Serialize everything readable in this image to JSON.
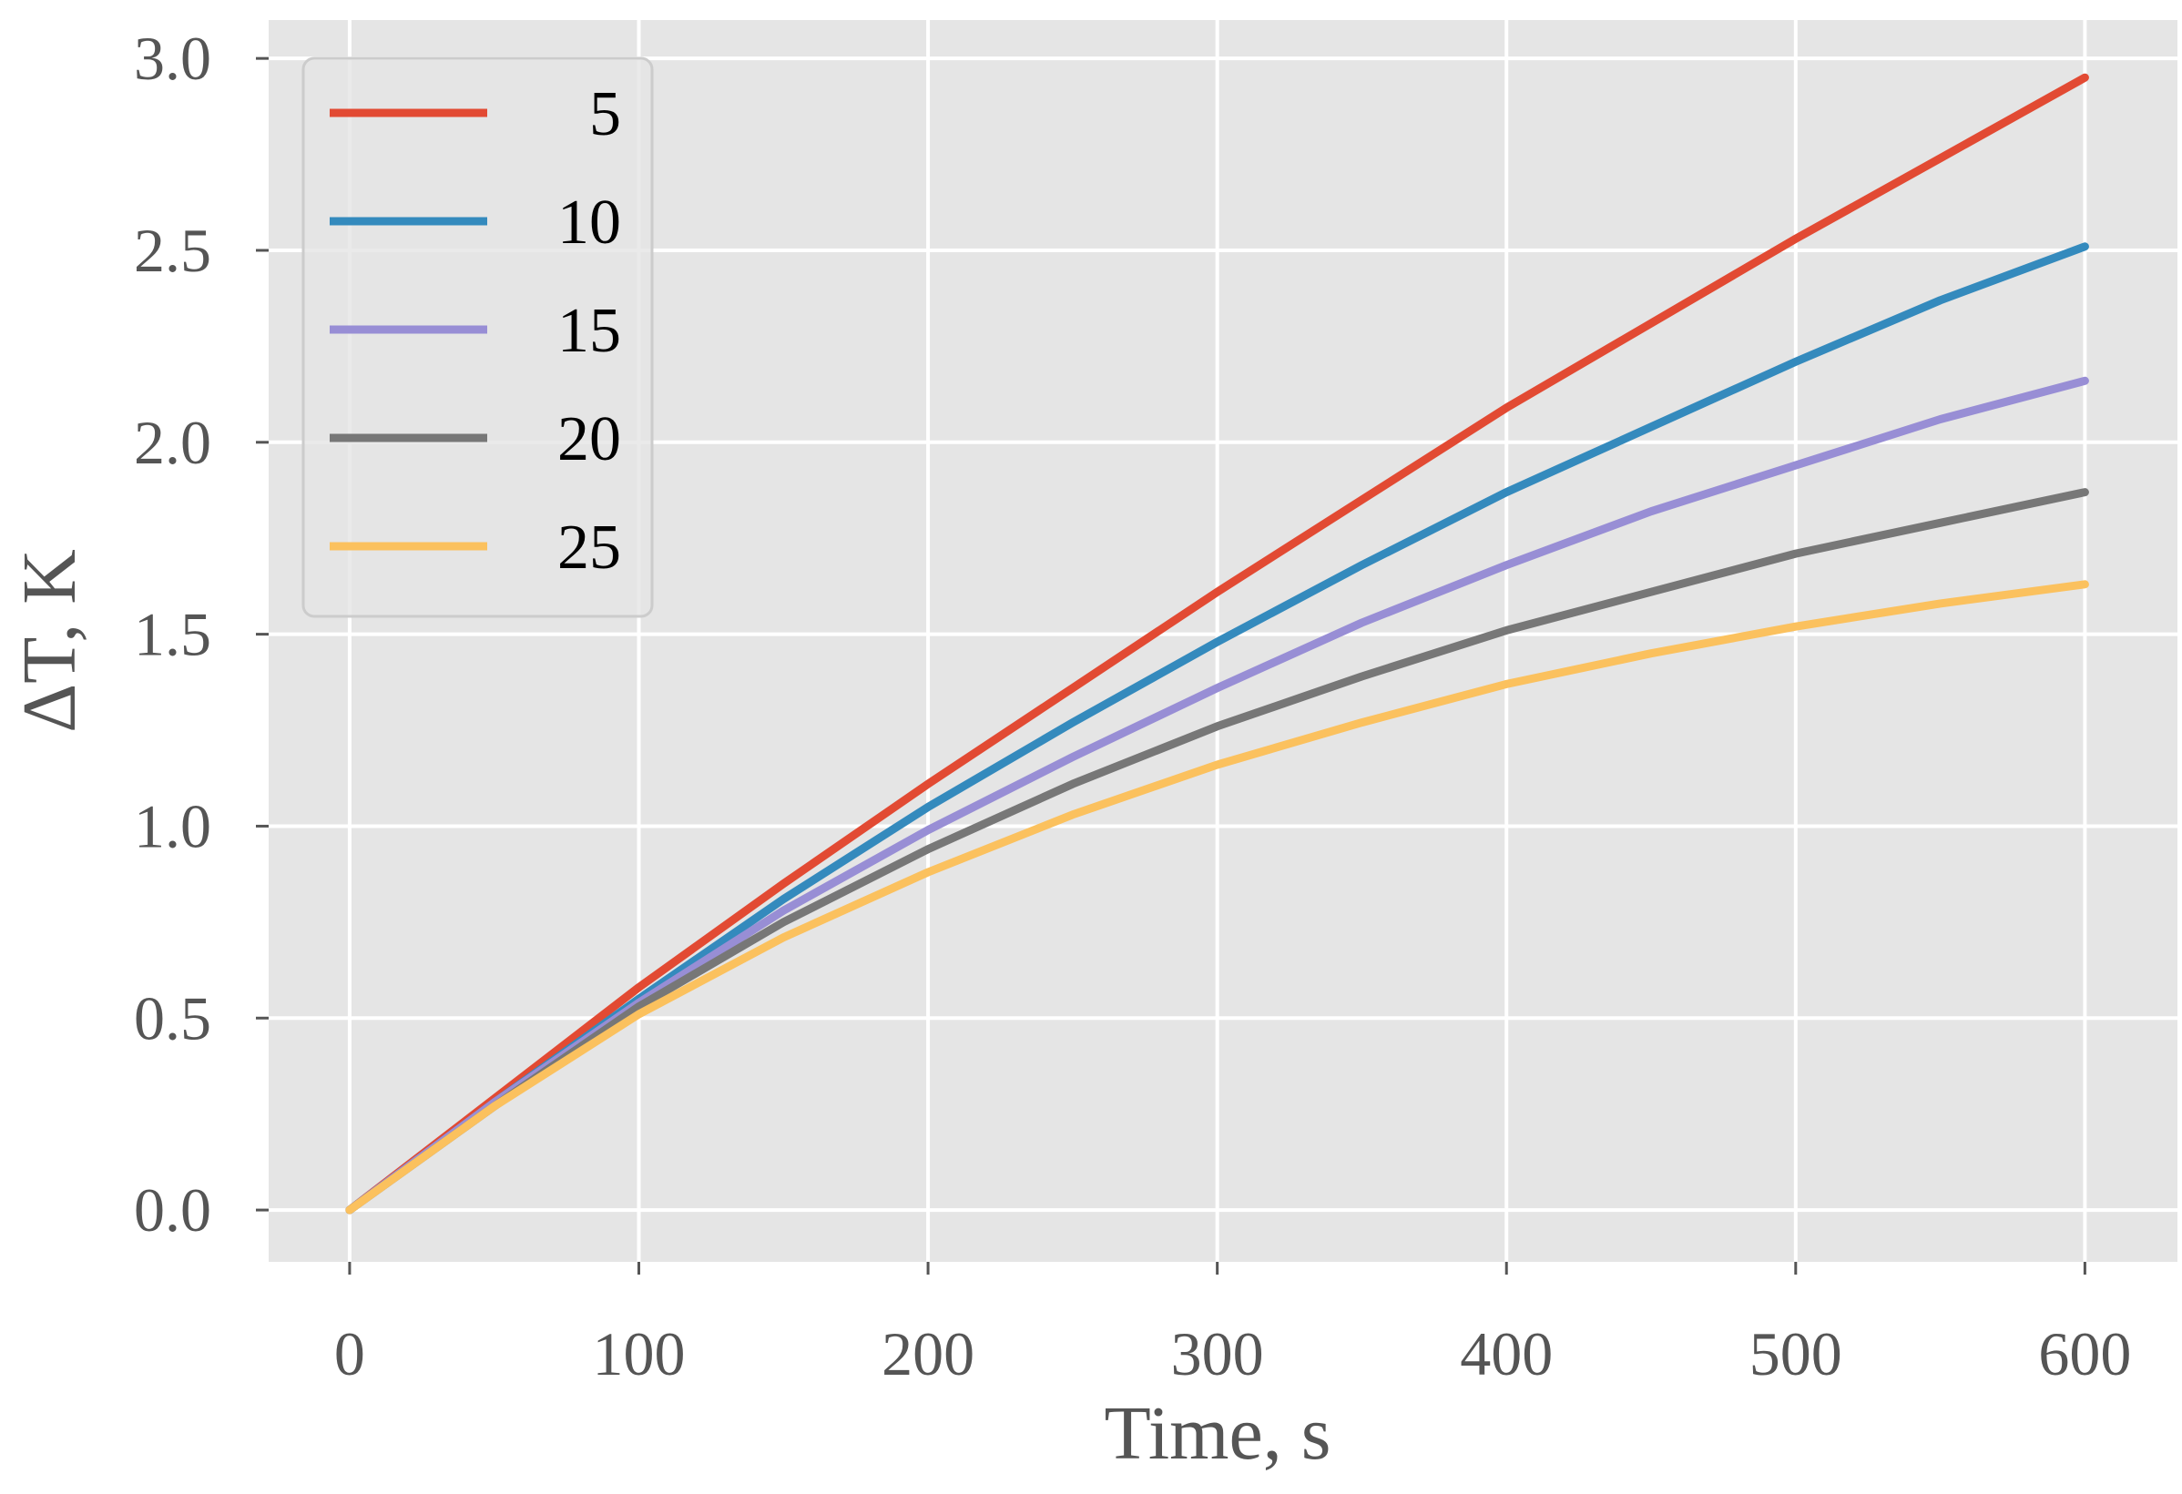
{
  "chart_data": {
    "type": "line",
    "title": "",
    "xlabel": "Time, s",
    "ylabel": "ΔT, K",
    "xlim": [
      -28,
      632
    ],
    "ylim": [
      -0.135,
      3.1
    ],
    "xticks": [
      0,
      100,
      200,
      300,
      400,
      500,
      600
    ],
    "yticks": [
      0.0,
      0.5,
      1.0,
      1.5,
      2.0,
      2.5,
      3.0
    ],
    "xtick_labels": [
      "0",
      "100",
      "200",
      "300",
      "400",
      "500",
      "600"
    ],
    "ytick_labels": [
      "0.0",
      "0.5",
      "1.0",
      "1.5",
      "2.0",
      "2.5",
      "3.0"
    ],
    "grid": true,
    "legend_position": "upper-left",
    "x": [
      0,
      50,
      100,
      150,
      200,
      250,
      300,
      350,
      400,
      450,
      500,
      550,
      600
    ],
    "series": [
      {
        "name": "5",
        "color": "#E24A33",
        "values": [
          0.0,
          0.29,
          0.58,
          0.85,
          1.11,
          1.36,
          1.61,
          1.85,
          2.09,
          2.31,
          2.53,
          2.74,
          2.95
        ]
      },
      {
        "name": "10",
        "color": "#348ABD",
        "values": [
          0.0,
          0.28,
          0.55,
          0.81,
          1.05,
          1.27,
          1.48,
          1.68,
          1.87,
          2.04,
          2.21,
          2.37,
          2.51
        ]
      },
      {
        "name": "15",
        "color": "#988ED5",
        "values": [
          0.0,
          0.28,
          0.54,
          0.78,
          0.99,
          1.18,
          1.36,
          1.53,
          1.68,
          1.82,
          1.94,
          2.06,
          2.16
        ]
      },
      {
        "name": "20",
        "color": "#777777",
        "values": [
          0.0,
          0.27,
          0.53,
          0.75,
          0.94,
          1.11,
          1.26,
          1.39,
          1.51,
          1.61,
          1.71,
          1.79,
          1.87
        ]
      },
      {
        "name": "25",
        "color": "#FBC15E",
        "values": [
          0.0,
          0.27,
          0.51,
          0.71,
          0.88,
          1.03,
          1.16,
          1.27,
          1.37,
          1.45,
          1.52,
          1.58,
          1.63
        ]
      }
    ]
  }
}
